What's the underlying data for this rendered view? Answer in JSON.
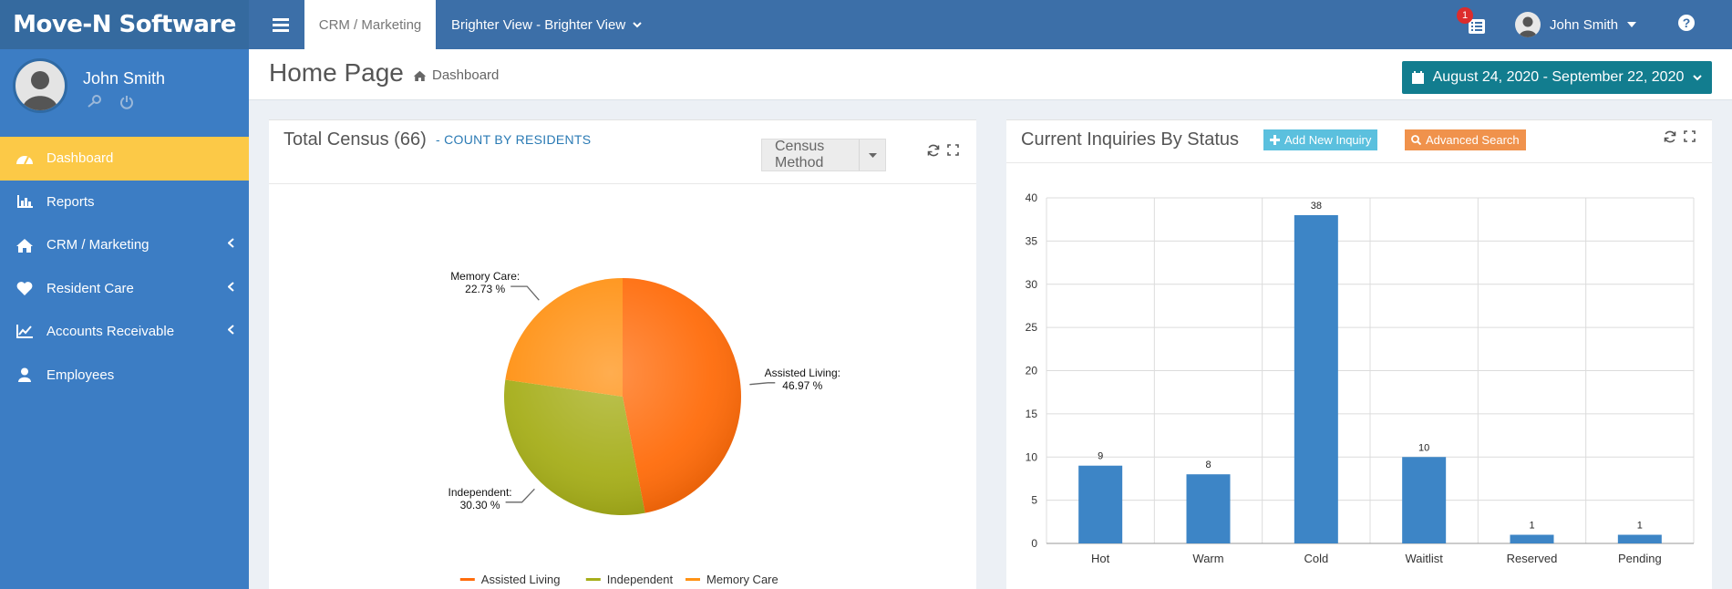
{
  "app": {
    "logo": "Move-N Software",
    "nav_tab_active": "CRM / Marketing",
    "org_selector": "Brighter View - Brighter View",
    "notification_count": "1",
    "user_name": "John Smith"
  },
  "sidebar": {
    "profile_name": "John Smith",
    "items": [
      {
        "label": "Dashboard",
        "icon": "dashboard-icon",
        "active": true
      },
      {
        "label": "Reports",
        "icon": "bar-chart-icon"
      },
      {
        "label": "CRM / Marketing",
        "icon": "home-icon",
        "expandable": true
      },
      {
        "label": "Resident Care",
        "icon": "heart-icon",
        "expandable": true
      },
      {
        "label": "Accounts Receivable",
        "icon": "line-chart-icon",
        "expandable": true
      },
      {
        "label": "Employees",
        "icon": "user-icon"
      }
    ]
  },
  "header": {
    "title": "Home Page",
    "breadcrumb": "Dashboard",
    "date_range": "August 24, 2020 - September 22, 2020"
  },
  "census": {
    "title": "Total Census (66)",
    "subtitle": "- COUNT BY RESIDENTS",
    "method_label": "Census Method"
  },
  "inquiries": {
    "title": "Current Inquiries By Status",
    "add_label": "Add New Inquiry",
    "search_label": "Advanced Search"
  },
  "chart_data": [
    {
      "type": "pie",
      "slices": [
        {
          "name": "Assisted Living",
          "value": 46.97,
          "label": "Assisted Living:",
          "pct": "46.97 %",
          "color": "#ff6c0b"
        },
        {
          "name": "Independent",
          "value": 30.3,
          "label": "Independent:",
          "pct": "30.30 %",
          "color": "#a6ae1a"
        },
        {
          "name": "Memory Care",
          "value": 22.73,
          "label": "Memory Care:",
          "pct": "22.73 %",
          "color": "#ff9215"
        }
      ],
      "legend": [
        "Assisted Living",
        "Independent",
        "Memory Care"
      ],
      "legend_position": "bottom"
    },
    {
      "type": "bar",
      "categories": [
        "Hot",
        "Warm",
        "Cold",
        "Waitlist",
        "Reserved",
        "Pending"
      ],
      "values": [
        9,
        8,
        38,
        10,
        1,
        1
      ],
      "ylim": [
        0,
        40
      ],
      "yticks": [
        0,
        5,
        10,
        15,
        20,
        25,
        30,
        35,
        40
      ],
      "grid": true,
      "bar_color": "#3d85c6"
    }
  ],
  "colors": {
    "topbar": "#3c6fa8",
    "sidebar": "#3c7dc4",
    "active_item": "#fcc947",
    "date_button": "#127d8f",
    "add_button": "#5bc0de",
    "search_button": "#f0924c"
  }
}
